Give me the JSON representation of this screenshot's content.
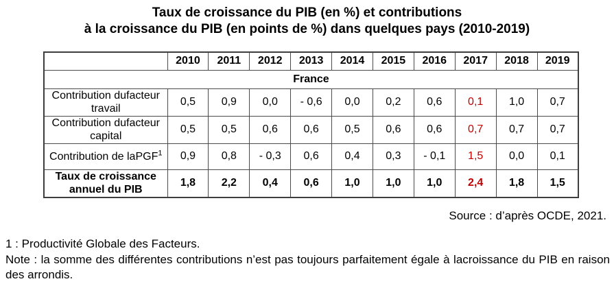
{
  "title": {
    "line1": "Taux de croissance du PIB (en %) et contributions",
    "line2": "à la croissance du PIB (en points de %) dans quelques pays (2010-2019)"
  },
  "table": {
    "years": [
      "2010",
      "2011",
      "2012",
      "2013",
      "2014",
      "2015",
      "2016",
      "2017",
      "2018",
      "2019"
    ],
    "country": "France",
    "highlight_year": "2017",
    "highlight_color": "#c00000",
    "rows": [
      {
        "id": "contribution-travail",
        "label_lines": [
          "Contribution dufacteur",
          "travail"
        ],
        "values": [
          "0,5",
          "0,9",
          "0,0",
          "- 0,6",
          "0,0",
          "0,2",
          "0,6",
          "0,1",
          "1,0",
          "0,7"
        ]
      },
      {
        "id": "contribution-capital",
        "label_lines": [
          "Contribution dufacteur",
          "capital"
        ],
        "values": [
          "0,5",
          "0,5",
          "0,6",
          "0,6",
          "0,5",
          "0,6",
          "0,6",
          "0,7",
          "0,7",
          "0,7"
        ]
      },
      {
        "id": "contribution-pgf",
        "label_lines": [
          "Contribution de laPGF"
        ],
        "superscript": "1",
        "values": [
          "0,9",
          "0,8",
          "- 0,3",
          "0,6",
          "0,4",
          "0,3",
          "- 0,1",
          "1,5",
          "0,0",
          "0,1"
        ]
      },
      {
        "id": "taux-croissance-pib",
        "label_lines": [
          "Taux de croissance",
          "annuel du PIB"
        ],
        "values": [
          "1,8",
          "2,2",
          "0,4",
          "0,6",
          "1,0",
          "1,0",
          "1,0",
          "2,4",
          "1,8",
          "1,5"
        ]
      }
    ]
  },
  "source": "Source : d’après OCDE, 2021.",
  "footnotes": {
    "definition": "1 : Productivité Globale des Facteurs.",
    "note": "Note : la somme des différentes contributions n’est pas toujours parfaitement égale à lacroissance du PIB en raison des arrondis."
  }
}
